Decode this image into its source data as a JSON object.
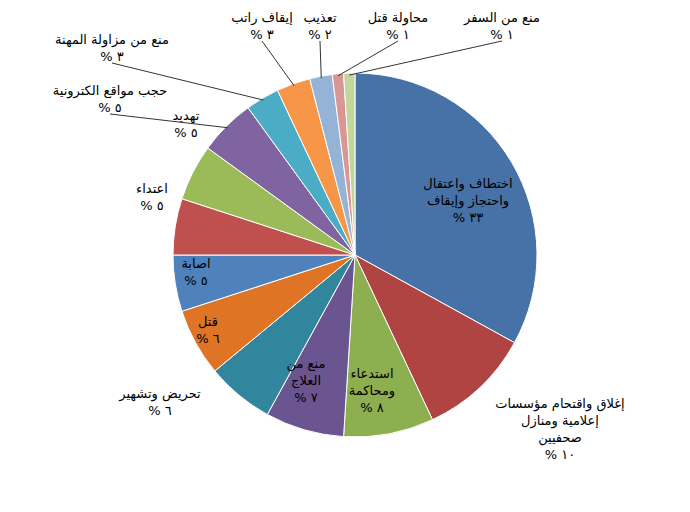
{
  "chart_data": {
    "type": "pie",
    "categories": [
      "اختطاف واعتقال واحتجاز وإيقاف",
      "إغلاق واقتحام مؤسسات إعلامية ومنازل صحفيين",
      "استدعاء ومحاكمة",
      "منع من العلاج",
      "تحريض وتشهير",
      "قتل",
      "اصابة",
      "اعتداء",
      "تهديد",
      "حجب مواقع الكترونية",
      "منع من مزاولة المهنة",
      "إيقاف راتب",
      "تعذيب",
      "محاولة قتل",
      "منع من السفر"
    ],
    "values": [
      33,
      10,
      8,
      7,
      6,
      6,
      5,
      5,
      5,
      5,
      3,
      3,
      2,
      1,
      1
    ],
    "value_labels": [
      "٣٣ %",
      "١٠ %",
      "٨ %",
      "٧ %",
      "٦ %",
      "٦ %",
      "٥ %",
      "٥ %",
      "٥ %",
      "٥ %",
      "٣ %",
      "٣ %",
      "٢ %",
      "١ %",
      "١ %"
    ],
    "colors": [
      "#4672a8",
      "#b04442",
      "#8eaf4f",
      "#6b5590",
      "#31859c",
      "#e07425",
      "#4f81bd",
      "#c0504d",
      "#9bbb59",
      "#8064a2",
      "#4bacc6",
      "#f79646",
      "#95b3d7",
      "#d99694",
      "#c3d69b"
    ],
    "data_labels": true
  }
}
